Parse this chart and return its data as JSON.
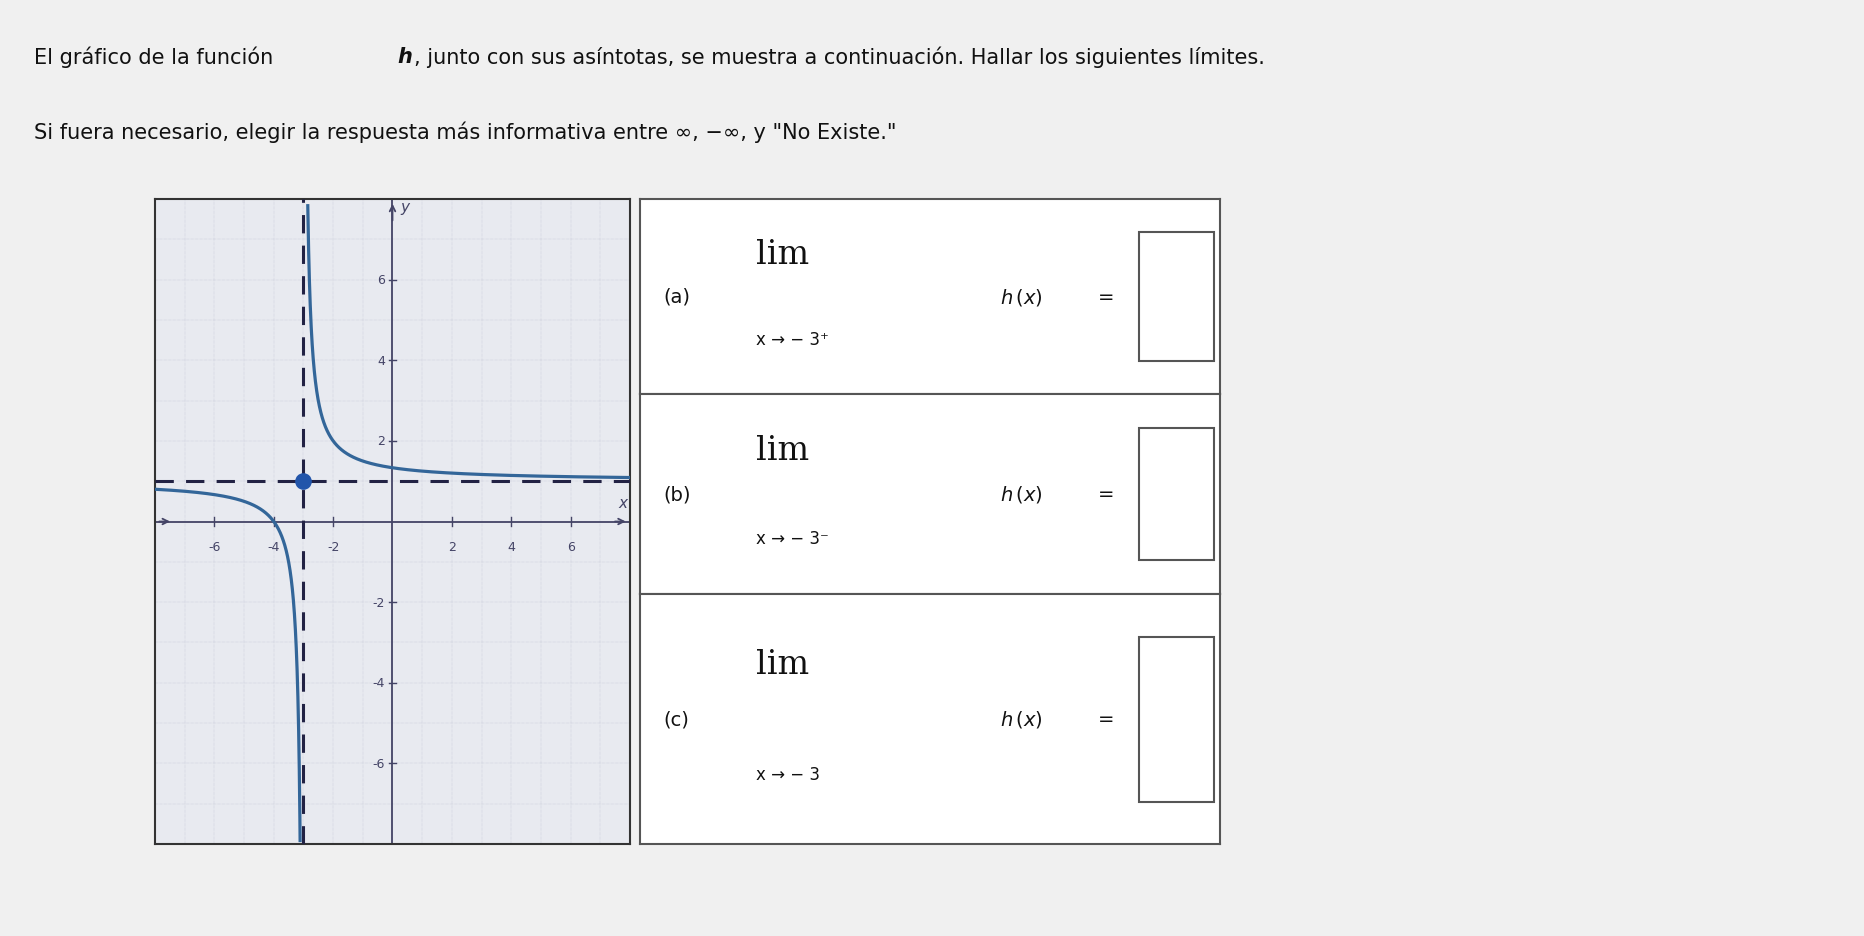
{
  "graph_bg": "#e8eaf0",
  "graph_border": "#333333",
  "asymptote_color": "#222244",
  "curve_color": "#336699",
  "dot_color": "#2255aa",
  "axes_color": "#444466",
  "xlim": [
    -8,
    8
  ],
  "ylim": [
    -8,
    8
  ],
  "xticks": [
    -6,
    -4,
    -2,
    2,
    4,
    6
  ],
  "yticks": [
    -6,
    -4,
    -2,
    2,
    4,
    6
  ],
  "vertical_asymptote": -3,
  "horizontal_asymptote": 1,
  "dot_x": -3,
  "dot_y": 1,
  "text_color": "#111111",
  "background_color": "#f0f0f0",
  "box_border": "#555555",
  "subs": [
    "x → − 3⁺",
    "x → − 3⁻",
    "x → − 3"
  ],
  "labels": [
    "(a)",
    "(b)",
    "(c)"
  ]
}
